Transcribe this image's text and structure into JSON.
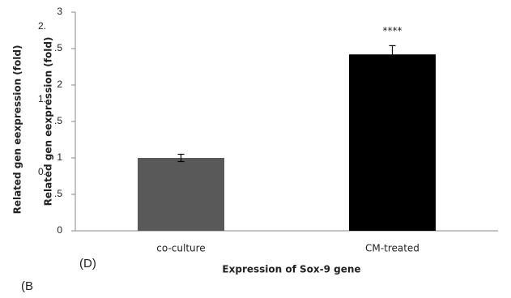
{
  "chart_data": {
    "type": "bar",
    "categories": [
      "co-culture",
      "CM-treated"
    ],
    "values": [
      1.0,
      2.42
    ],
    "errors": [
      0.05,
      0.12
    ],
    "colors": [
      "#595959",
      "#000000"
    ],
    "ylim": [
      0,
      3
    ],
    "yticks": [
      0,
      {
        "value": 0.5,
        "label": ".5"
      },
      1,
      {
        "value": 1.5,
        "label": ".5"
      },
      2,
      {
        "value": 2.5,
        "label": ".5"
      },
      3
    ],
    "ghost_tick_labels": [
      {
        "value": 0.5,
        "label": "0."
      },
      {
        "value": 1.5,
        "label": "1."
      },
      {
        "value": 2.5,
        "label": "2."
      }
    ],
    "ylabels": [
      "Related gen eexpression (fold)",
      "Related gen eexpression (fold)"
    ],
    "xlabel": "Expression of Sox-9 gene",
    "significance": [
      "",
      "****"
    ],
    "panel_labels": [
      "(D)",
      "(B"
    ]
  }
}
